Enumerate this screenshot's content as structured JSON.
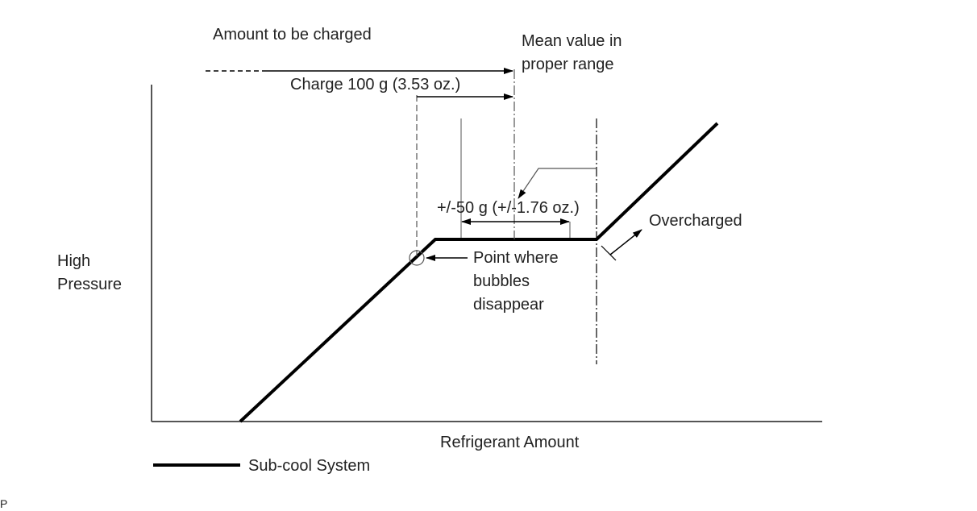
{
  "labels": {
    "amount_to_be_charged": "Amount to be charged",
    "mean_value_line1": "Mean value in",
    "mean_value_line2": "proper range",
    "charge_amount": "Charge 100 g (3.53 oz.)",
    "tolerance": "+/-50 g (+/-1.76 oz.)",
    "overcharged": "Overcharged",
    "point_line1": "Point where",
    "point_line2": "bubbles",
    "point_line3": "disappear",
    "y_axis_line1": "High",
    "y_axis_line2": "Pressure",
    "x_axis": "Refrigerant Amount",
    "legend": "Sub-cool System",
    "corner_mark": "P"
  },
  "colors": {
    "line": "#000000",
    "text": "#222222",
    "thin": "#555555"
  }
}
